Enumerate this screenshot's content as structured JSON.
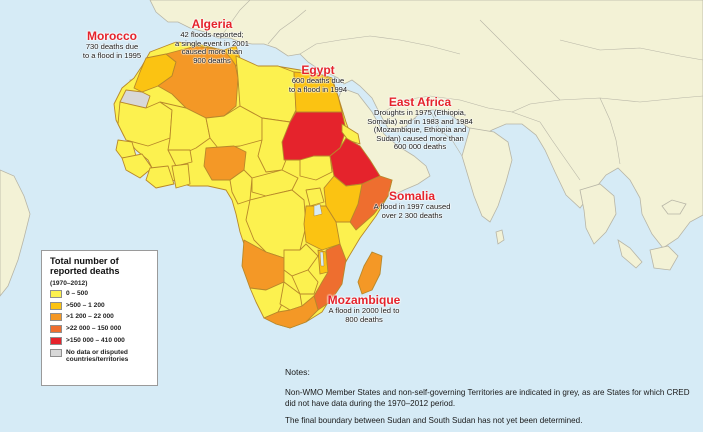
{
  "colors": {
    "sea": "#d6ebf6",
    "land_other": "#f3f2d6",
    "border_other": "#b7b5a6",
    "border_africa": "#b8882a",
    "grey": "#d8d8d8",
    "class_1": "#fcf14f",
    "class_2": "#fbc312",
    "class_3": "#f49826",
    "class_4": "#ee6e2f",
    "class_5": "#e5232c",
    "label_red": "#e5232c"
  },
  "labels": {
    "algeria": {
      "title": "Algeria",
      "lines": [
        "42 floods reported;",
        "a single event in 2001",
        "caused more than",
        "900 deaths"
      ]
    },
    "morocco": {
      "title": "Morocco",
      "lines": [
        "730 deaths due",
        "to a flood in 1995"
      ]
    },
    "egypt": {
      "title": "Egypt",
      "lines": [
        "600 deaths due",
        "to a flood in 1994"
      ]
    },
    "east_africa": {
      "title": "East Africa",
      "lines": [
        "Droughts in 1975 (Ethiopia,",
        "Somalia) and in 1983 and 1984",
        "(Mozambique, Ethiopia and",
        "Sudan) caused more than",
        "600 000 deaths"
      ]
    },
    "somalia": {
      "title": "Somalia",
      "lines": [
        "A flood in 1997 caused",
        "over 2 300 deaths"
      ]
    },
    "mozambique": {
      "title": "Mozambique",
      "lines": [
        "A flood in 2000 led to",
        "800 deaths"
      ]
    }
  },
  "legend": {
    "title_line1": "Total number of",
    "title_line2": "reported deaths",
    "subtitle": "(1970–2012)",
    "items": [
      {
        "label": "0 – 500",
        "color": "#fcf14f"
      },
      {
        "label": ">500 – 1 200",
        "color": "#fbc312"
      },
      {
        "label": ">1 200 – 22 000",
        "color": "#f49826"
      },
      {
        "label": ">22 000 – 150 000",
        "color": "#ee6e2f"
      },
      {
        "label": ">150 000 – 410 000",
        "color": "#e5232c"
      },
      {
        "label": "No data or disputed countries/territories",
        "color": "#d8d8d8"
      }
    ]
  },
  "notes": {
    "heading": "Notes:",
    "line1": "Non-WMO Member States and non-self-governing Territories are indicated in grey, as are States for which CRED did not have data during the 1970–2012 period.",
    "line2": "The final boundary between Sudan and South Sudan has not yet been determined."
  }
}
